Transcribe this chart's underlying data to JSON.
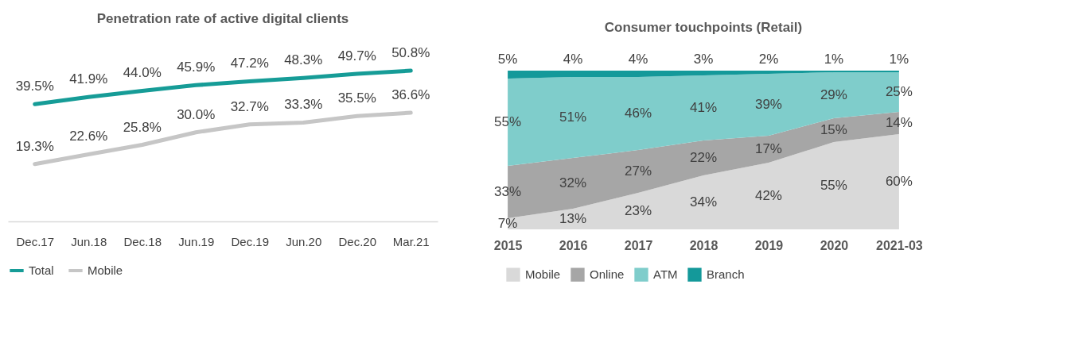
{
  "chart_data": [
    {
      "type": "line",
      "title": "Penetration rate of active digital clients",
      "categories": [
        "Dec.17",
        "Jun.18",
        "Dec.18",
        "Jun.19",
        "Dec.19",
        "Jun.20",
        "Dec.20",
        "Mar.21"
      ],
      "legend": "bottom",
      "grid": false,
      "marker": "none",
      "series": [
        {
          "name": "Total",
          "color": "#169c97",
          "values": [
            39.5,
            41.9,
            44.0,
            45.9,
            47.2,
            48.3,
            49.7,
            50.8
          ],
          "value_labels": [
            "39.5%",
            "41.9%",
            "44.0%",
            "45.9%",
            "47.2%",
            "48.3%",
            "49.7%",
            "50.8%"
          ]
        },
        {
          "name": "Mobile",
          "color": "#c6c6c6",
          "values": [
            19.3,
            22.6,
            25.8,
            30.0,
            32.7,
            33.3,
            35.5,
            36.6
          ],
          "value_labels": [
            "19.3%",
            "22.6%",
            "25.8%",
            "30.0%",
            "32.7%",
            "33.3%",
            "35.5%",
            "36.6%"
          ]
        }
      ]
    },
    {
      "type": "area",
      "title": "Consumer touchpoints (Retail)",
      "stacked": true,
      "categories": [
        "2015",
        "2016",
        "2017",
        "2018",
        "2019",
        "2020",
        "2021-03"
      ],
      "legend": "bottom",
      "grid": false,
      "series": [
        {
          "name": "Mobile",
          "color": "#d9d9d9",
          "values": [
            7,
            13,
            23,
            34,
            42,
            55,
            60
          ],
          "value_labels": [
            "7%",
            "13%",
            "23%",
            "34%",
            "42%",
            "55%",
            "60%"
          ]
        },
        {
          "name": "Online",
          "color": "#a6a6a6",
          "values": [
            33,
            32,
            27,
            22,
            17,
            15,
            14
          ],
          "value_labels": [
            "33%",
            "32%",
            "27%",
            "22%",
            "17%",
            "15%",
            "14%"
          ]
        },
        {
          "name": "ATM",
          "color": "#7fcdcb",
          "values": [
            55,
            51,
            46,
            41,
            39,
            29,
            25
          ],
          "value_labels": [
            "55%",
            "51%",
            "46%",
            "41%",
            "39%",
            "29%",
            "25%"
          ]
        },
        {
          "name": "Branch",
          "color": "#14999a",
          "values": [
            5,
            4,
            4,
            3,
            2,
            1,
            1
          ],
          "value_labels": [
            "5%",
            "4%",
            "4%",
            "3%",
            "2%",
            "1%",
            "1%"
          ]
        }
      ]
    }
  ]
}
